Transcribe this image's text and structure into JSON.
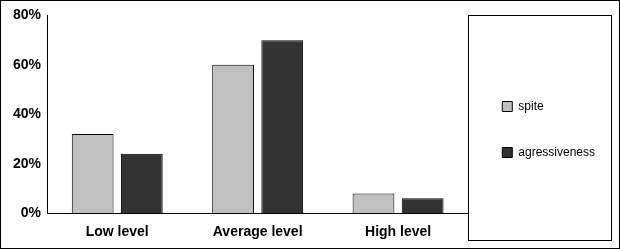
{
  "chart_data": {
    "type": "bar",
    "categories": [
      "Low level",
      "Average level",
      "High level"
    ],
    "series": [
      {
        "name": "spite",
        "color": "#c0c0c0",
        "values": [
          32,
          60,
          8
        ]
      },
      {
        "name": "agressiveness",
        "color": "#333333",
        "values": [
          24,
          70,
          6
        ]
      }
    ],
    "ylim": [
      0,
      80
    ],
    "yticks": [
      {
        "value": 0,
        "label": "0%"
      },
      {
        "value": 20,
        "label": "20%"
      },
      {
        "value": 40,
        "label": "40%"
      },
      {
        "value": 60,
        "label": "60%"
      },
      {
        "value": 80,
        "label": "80%"
      }
    ],
    "grid": false,
    "legend": "right"
  }
}
